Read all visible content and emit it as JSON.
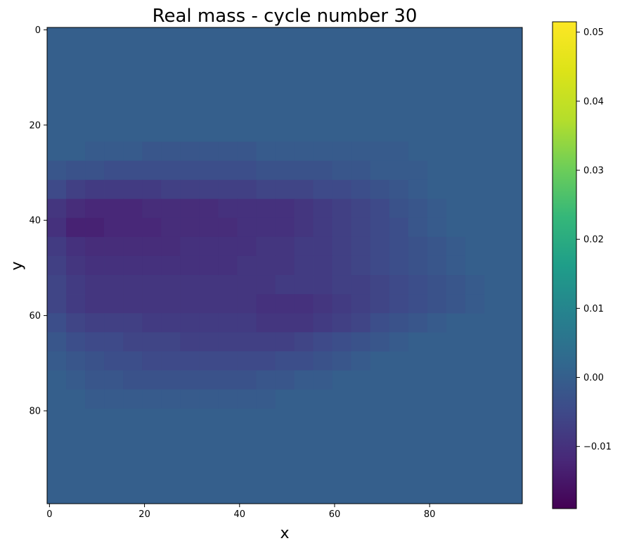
{
  "chart_data": {
    "type": "heatmap",
    "title": "Real mass - cycle number 30",
    "xlabel": "x",
    "ylabel": "y",
    "grid": false,
    "colormap": "viridis",
    "xlim": [
      -0.5,
      99.5
    ],
    "ylim": [
      99.5,
      -0.5
    ],
    "y_inverted": true,
    "x_ticks": [
      0,
      20,
      40,
      60,
      80
    ],
    "x_tick_labels": [
      "0",
      "20",
      "40",
      "60",
      "80"
    ],
    "y_ticks": [
      0,
      20,
      40,
      60,
      80
    ],
    "y_tick_labels": [
      "0",
      "20",
      "40",
      "60",
      "80"
    ],
    "colorbar": {
      "range": [
        -0.019,
        0.0515
      ],
      "ticks": [
        -0.01,
        0.0,
        0.01,
        0.02,
        0.03,
        0.04,
        0.05
      ],
      "tick_labels": [
        "−0.01",
        "0.00",
        "0.01",
        "0.02",
        "0.03",
        "0.04",
        "0.05"
      ]
    },
    "grid_size": [
      100,
      100
    ],
    "background_value": 0.0,
    "cell_size": 4,
    "blob_rows": [
      {
        "y": 24,
        "values": [
          0,
          0,
          -0.001,
          -0.001,
          -0.001,
          -0.002,
          -0.002,
          -0.002,
          -0.002,
          -0.002,
          -0.002,
          -0.001,
          -0.001,
          -0.001,
          -0.001,
          -0.001,
          -0.001,
          -0.001,
          -0.001,
          0,
          0,
          0,
          0,
          0,
          0
        ]
      },
      {
        "y": 28,
        "values": [
          -0.002,
          -0.003,
          -0.003,
          -0.004,
          -0.004,
          -0.004,
          -0.004,
          -0.004,
          -0.004,
          -0.004,
          -0.004,
          -0.003,
          -0.003,
          -0.003,
          -0.003,
          -0.002,
          -0.002,
          -0.001,
          -0.001,
          -0.001,
          0,
          0,
          0,
          0,
          0
        ]
      },
      {
        "y": 32,
        "values": [
          -0.005,
          -0.007,
          -0.008,
          -0.008,
          -0.008,
          -0.008,
          -0.007,
          -0.007,
          -0.007,
          -0.007,
          -0.007,
          -0.006,
          -0.006,
          -0.006,
          -0.005,
          -0.005,
          -0.004,
          -0.003,
          -0.002,
          -0.001,
          0,
          0,
          0,
          0,
          0
        ]
      },
      {
        "y": 36,
        "values": [
          -0.009,
          -0.011,
          -0.012,
          -0.012,
          -0.012,
          -0.011,
          -0.011,
          -0.011,
          -0.011,
          -0.01,
          -0.01,
          -0.01,
          -0.01,
          -0.009,
          -0.008,
          -0.007,
          -0.006,
          -0.005,
          -0.003,
          -0.002,
          -0.001,
          0,
          0,
          0,
          0
        ]
      },
      {
        "y": 40,
        "values": [
          -0.01,
          -0.013,
          -0.013,
          -0.012,
          -0.012,
          -0.012,
          -0.011,
          -0.011,
          -0.011,
          -0.011,
          -0.01,
          -0.01,
          -0.01,
          -0.009,
          -0.008,
          -0.007,
          -0.006,
          -0.005,
          -0.004,
          -0.002,
          -0.001,
          0,
          0,
          0,
          0
        ]
      },
      {
        "y": 44,
        "values": [
          -0.008,
          -0.01,
          -0.011,
          -0.011,
          -0.011,
          -0.011,
          -0.011,
          -0.01,
          -0.01,
          -0.01,
          -0.01,
          -0.009,
          -0.009,
          -0.008,
          -0.008,
          -0.007,
          -0.006,
          -0.005,
          -0.004,
          -0.003,
          -0.002,
          -0.001,
          0,
          0,
          0
        ]
      },
      {
        "y": 48,
        "values": [
          -0.007,
          -0.009,
          -0.01,
          -0.01,
          -0.01,
          -0.01,
          -0.01,
          -0.01,
          -0.01,
          -0.01,
          -0.009,
          -0.009,
          -0.009,
          -0.008,
          -0.008,
          -0.007,
          -0.006,
          -0.005,
          -0.004,
          -0.003,
          -0.002,
          -0.001,
          0,
          0,
          0
        ]
      },
      {
        "y": 52,
        "values": [
          -0.006,
          -0.008,
          -0.009,
          -0.009,
          -0.009,
          -0.009,
          -0.009,
          -0.009,
          -0.009,
          -0.009,
          -0.009,
          -0.009,
          -0.008,
          -0.008,
          -0.008,
          -0.007,
          -0.007,
          -0.006,
          -0.005,
          -0.004,
          -0.003,
          -0.002,
          -0.001,
          0,
          0
        ]
      },
      {
        "y": 56,
        "values": [
          -0.006,
          -0.008,
          -0.009,
          -0.009,
          -0.009,
          -0.009,
          -0.009,
          -0.009,
          -0.009,
          -0.009,
          -0.009,
          -0.01,
          -0.01,
          -0.01,
          -0.009,
          -0.008,
          -0.007,
          -0.006,
          -0.005,
          -0.004,
          -0.003,
          -0.002,
          -0.001,
          0,
          0
        ]
      },
      {
        "y": 60,
        "values": [
          -0.004,
          -0.006,
          -0.007,
          -0.007,
          -0.007,
          -0.008,
          -0.008,
          -0.008,
          -0.008,
          -0.008,
          -0.008,
          -0.009,
          -0.009,
          -0.009,
          -0.008,
          -0.007,
          -0.006,
          -0.004,
          -0.003,
          -0.002,
          -0.001,
          0,
          0,
          0,
          0
        ]
      },
      {
        "y": 64,
        "values": [
          -0.002,
          -0.004,
          -0.005,
          -0.005,
          -0.006,
          -0.006,
          -0.006,
          -0.007,
          -0.007,
          -0.007,
          -0.007,
          -0.007,
          -0.007,
          -0.006,
          -0.005,
          -0.004,
          -0.003,
          -0.002,
          -0.001,
          0,
          0,
          0,
          0,
          0,
          0
        ]
      },
      {
        "y": 68,
        "values": [
          -0.001,
          -0.002,
          -0.003,
          -0.004,
          -0.004,
          -0.005,
          -0.005,
          -0.005,
          -0.005,
          -0.005,
          -0.005,
          -0.005,
          -0.004,
          -0.004,
          -0.003,
          -0.002,
          -0.001,
          0,
          0,
          0,
          0,
          0,
          0,
          0,
          0
        ]
      },
      {
        "y": 72,
        "values": [
          0,
          -0.001,
          -0.002,
          -0.002,
          -0.003,
          -0.003,
          -0.003,
          -0.003,
          -0.003,
          -0.003,
          -0.003,
          -0.002,
          -0.002,
          -0.001,
          -0.001,
          0,
          0,
          0,
          0,
          0,
          0,
          0,
          0,
          0,
          0
        ]
      },
      {
        "y": 76,
        "values": [
          0,
          0,
          -0.001,
          -0.001,
          -0.001,
          -0.001,
          -0.001,
          -0.001,
          -0.001,
          -0.001,
          -0.001,
          -0.001,
          0,
          0,
          0,
          0,
          0,
          0,
          0,
          0,
          0,
          0,
          0,
          0,
          0
        ]
      }
    ]
  }
}
